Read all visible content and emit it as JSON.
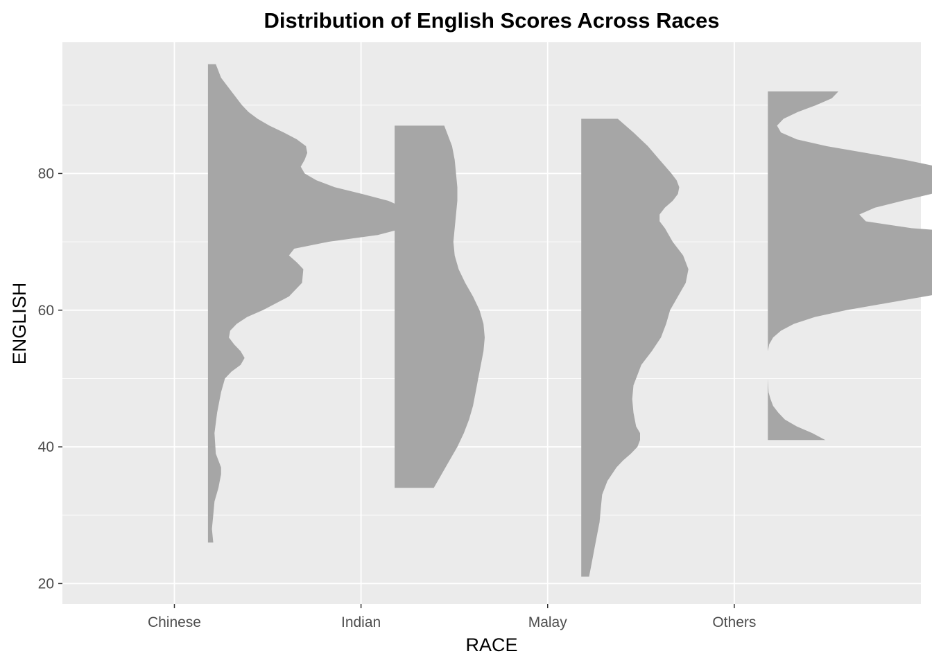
{
  "chart_data": {
    "type": "half-violin",
    "title": "Distribution of English Scores Across Races",
    "xlabel": "RACE",
    "ylabel": "ENGLISH",
    "categories": [
      "Chinese",
      "Indian",
      "Malay",
      "Others"
    ],
    "ylim": [
      17,
      99.2
    ],
    "yticks": [
      20,
      40,
      60,
      80
    ],
    "grid": true,
    "fill_color": "#a6a6a6",
    "panel_color": "#ebebeb",
    "series": [
      {
        "category": "Chinese",
        "min": 26,
        "max": 96,
        "density_width": [
          [
            26,
            0.04
          ],
          [
            28,
            0.03
          ],
          [
            30,
            0.04
          ],
          [
            32,
            0.05
          ],
          [
            34,
            0.08
          ],
          [
            36,
            0.1
          ],
          [
            37,
            0.1
          ],
          [
            39,
            0.06
          ],
          [
            42,
            0.05
          ],
          [
            45,
            0.07
          ],
          [
            48,
            0.1
          ],
          [
            50,
            0.13
          ],
          [
            51,
            0.18
          ],
          [
            52,
            0.25
          ],
          [
            53,
            0.28
          ],
          [
            54,
            0.25
          ],
          [
            55,
            0.2
          ],
          [
            56,
            0.16
          ],
          [
            57,
            0.17
          ],
          [
            58,
            0.22
          ],
          [
            59,
            0.3
          ],
          [
            60,
            0.42
          ],
          [
            62,
            0.62
          ],
          [
            64,
            0.72
          ],
          [
            66,
            0.73
          ],
          [
            67,
            0.68
          ],
          [
            68,
            0.62
          ],
          [
            69,
            0.66
          ],
          [
            70,
            0.92
          ],
          [
            71,
            1.3
          ],
          [
            72,
            1.5
          ],
          [
            73,
            1.6
          ],
          [
            74,
            1.6
          ],
          [
            75,
            1.5
          ],
          [
            76,
            1.38
          ],
          [
            77,
            1.18
          ],
          [
            78,
            0.97
          ],
          [
            79,
            0.83
          ],
          [
            80,
            0.74
          ],
          [
            81,
            0.71
          ],
          [
            82,
            0.74
          ],
          [
            83,
            0.76
          ],
          [
            84,
            0.75
          ],
          [
            85,
            0.68
          ],
          [
            86,
            0.58
          ],
          [
            87,
            0.47
          ],
          [
            88,
            0.38
          ],
          [
            89,
            0.31
          ],
          [
            90,
            0.26
          ],
          [
            92,
            0.18
          ],
          [
            94,
            0.1
          ],
          [
            96,
            0.06
          ]
        ]
      },
      {
        "category": "Indian",
        "min": 34,
        "max": 87,
        "density_width": [
          [
            34,
            0.3
          ],
          [
            36,
            0.36
          ],
          [
            38,
            0.42
          ],
          [
            40,
            0.48
          ],
          [
            42,
            0.53
          ],
          [
            44,
            0.57
          ],
          [
            46,
            0.6
          ],
          [
            48,
            0.62
          ],
          [
            50,
            0.64
          ],
          [
            52,
            0.66
          ],
          [
            54,
            0.68
          ],
          [
            56,
            0.69
          ],
          [
            58,
            0.68
          ],
          [
            60,
            0.65
          ],
          [
            62,
            0.6
          ],
          [
            64,
            0.54
          ],
          [
            66,
            0.49
          ],
          [
            68,
            0.46
          ],
          [
            70,
            0.45
          ],
          [
            72,
            0.46
          ],
          [
            74,
            0.47
          ],
          [
            76,
            0.48
          ],
          [
            78,
            0.48
          ],
          [
            80,
            0.47
          ],
          [
            82,
            0.46
          ],
          [
            84,
            0.44
          ],
          [
            86,
            0.4
          ],
          [
            87,
            0.38
          ]
        ]
      },
      {
        "category": "Malay",
        "min": 21,
        "max": 88,
        "density_width": [
          [
            21,
            0.06
          ],
          [
            23,
            0.08
          ],
          [
            25,
            0.1
          ],
          [
            27,
            0.12
          ],
          [
            29,
            0.14
          ],
          [
            31,
            0.15
          ],
          [
            33,
            0.16
          ],
          [
            35,
            0.2
          ],
          [
            37,
            0.27
          ],
          [
            38,
            0.32
          ],
          [
            39,
            0.38
          ],
          [
            40,
            0.43
          ],
          [
            41,
            0.45
          ],
          [
            42,
            0.45
          ],
          [
            43,
            0.42
          ],
          [
            45,
            0.4
          ],
          [
            47,
            0.39
          ],
          [
            49,
            0.4
          ],
          [
            50,
            0.42
          ],
          [
            52,
            0.46
          ],
          [
            54,
            0.54
          ],
          [
            56,
            0.61
          ],
          [
            58,
            0.65
          ],
          [
            60,
            0.68
          ],
          [
            62,
            0.74
          ],
          [
            64,
            0.8
          ],
          [
            66,
            0.82
          ],
          [
            68,
            0.78
          ],
          [
            70,
            0.7
          ],
          [
            72,
            0.64
          ],
          [
            73,
            0.6
          ],
          [
            74,
            0.6
          ],
          [
            75,
            0.64
          ],
          [
            76,
            0.7
          ],
          [
            77,
            0.74
          ],
          [
            78,
            0.75
          ],
          [
            79,
            0.73
          ],
          [
            80,
            0.69
          ],
          [
            82,
            0.6
          ],
          [
            84,
            0.51
          ],
          [
            86,
            0.4
          ],
          [
            88,
            0.28
          ]
        ]
      },
      {
        "category": "Others",
        "min": 41,
        "max": 92,
        "gap": [
          50,
          54
        ],
        "density_width": [
          [
            41,
            0.44
          ],
          [
            42,
            0.34
          ],
          [
            43,
            0.22
          ],
          [
            44,
            0.13
          ],
          [
            45,
            0.08
          ],
          [
            46,
            0.04
          ],
          [
            47,
            0.02
          ],
          [
            48,
            0.005
          ],
          [
            50,
            0.0
          ],
          [
            54,
            0.0
          ],
          [
            55,
            0.01
          ],
          [
            56,
            0.04
          ],
          [
            57,
            0.1
          ],
          [
            58,
            0.2
          ],
          [
            59,
            0.36
          ],
          [
            60,
            0.6
          ],
          [
            61,
            0.9
          ],
          [
            62,
            1.2
          ],
          [
            63,
            1.5
          ],
          [
            64,
            1.8
          ],
          [
            65,
            2.05
          ],
          [
            66,
            2.25
          ],
          [
            67,
            2.4
          ],
          [
            68,
            2.49
          ],
          [
            69,
            2.5
          ],
          [
            70,
            2.3
          ],
          [
            71,
            1.8
          ],
          [
            72,
            1.1
          ],
          [
            73,
            0.75
          ],
          [
            74,
            0.7
          ],
          [
            75,
            0.82
          ],
          [
            76,
            1.03
          ],
          [
            77,
            1.25
          ],
          [
            78,
            1.4
          ],
          [
            79,
            1.49
          ],
          [
            80,
            1.46
          ],
          [
            81,
            1.3
          ],
          [
            82,
            1.05
          ],
          [
            83,
            0.75
          ],
          [
            84,
            0.45
          ],
          [
            85,
            0.22
          ],
          [
            86,
            0.1
          ],
          [
            87,
            0.07
          ],
          [
            88,
            0.12
          ],
          [
            89,
            0.23
          ],
          [
            90,
            0.37
          ],
          [
            91,
            0.49
          ],
          [
            92,
            0.54
          ]
        ]
      }
    ]
  }
}
